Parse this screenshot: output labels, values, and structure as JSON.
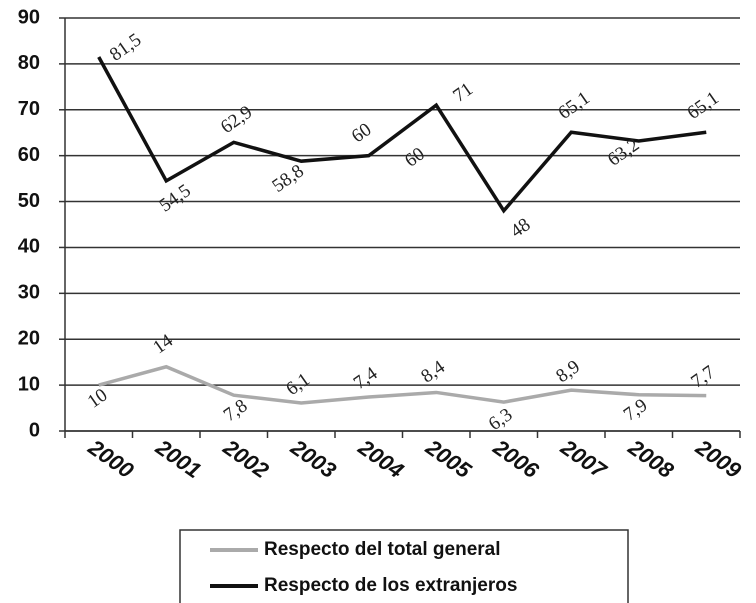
{
  "chart_data": {
    "type": "line",
    "categories": [
      "2000",
      "2001",
      "2002",
      "2003",
      "2004",
      "2005",
      "2006",
      "2007",
      "2008",
      "2009"
    ],
    "series": [
      {
        "name": "Respecto del total general",
        "color": "#aaaaaa",
        "values": [
          10,
          14,
          7.8,
          6.1,
          7.4,
          8.4,
          6.3,
          8.9,
          7.9,
          7.7
        ],
        "value_labels": [
          "10",
          "14",
          "7,8",
          "6,1",
          "7,4",
          "8,4",
          "6,3",
          "8,9",
          "7,9",
          "7,7"
        ]
      },
      {
        "name": "Respecto de los extranjeros",
        "color": "#111111",
        "values": [
          81.5,
          54.5,
          62.9,
          58.8,
          60,
          71,
          48,
          65.1,
          63.2,
          65.1
        ],
        "value_labels": [
          "81,5",
          "54,5",
          "62,9",
          "58,8",
          "60",
          "71",
          "48",
          "65,1",
          "63,2",
          "65,1"
        ]
      }
    ],
    "annotations": [
      "60"
    ],
    "ylim": [
      0,
      90
    ],
    "yticks": [
      0,
      10,
      20,
      30,
      40,
      50,
      60,
      70,
      80,
      90
    ],
    "grid": true
  }
}
